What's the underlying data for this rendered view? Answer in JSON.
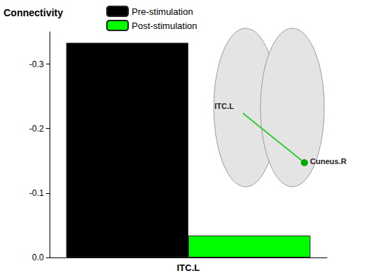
{
  "chart_data": {
    "type": "bar",
    "ylabel": "Connectivity",
    "categories": [
      "ITC.L"
    ],
    "series": [
      {
        "name": "Pre-stimulation",
        "color": "#000000",
        "values": [
          -0.333
        ]
      },
      {
        "name": "Post-stimulation",
        "color": "#00ff00",
        "values": [
          -0.034
        ]
      }
    ],
    "ylim": [
      0,
      -0.35
    ],
    "yticks": [
      {
        "value": 0,
        "label": "0.0"
      },
      -0.1,
      -0.2,
      -0.3
    ],
    "grid": false,
    "legend": "top",
    "annotations": [
      "ITC.L",
      "Cuneus.R"
    ]
  }
}
